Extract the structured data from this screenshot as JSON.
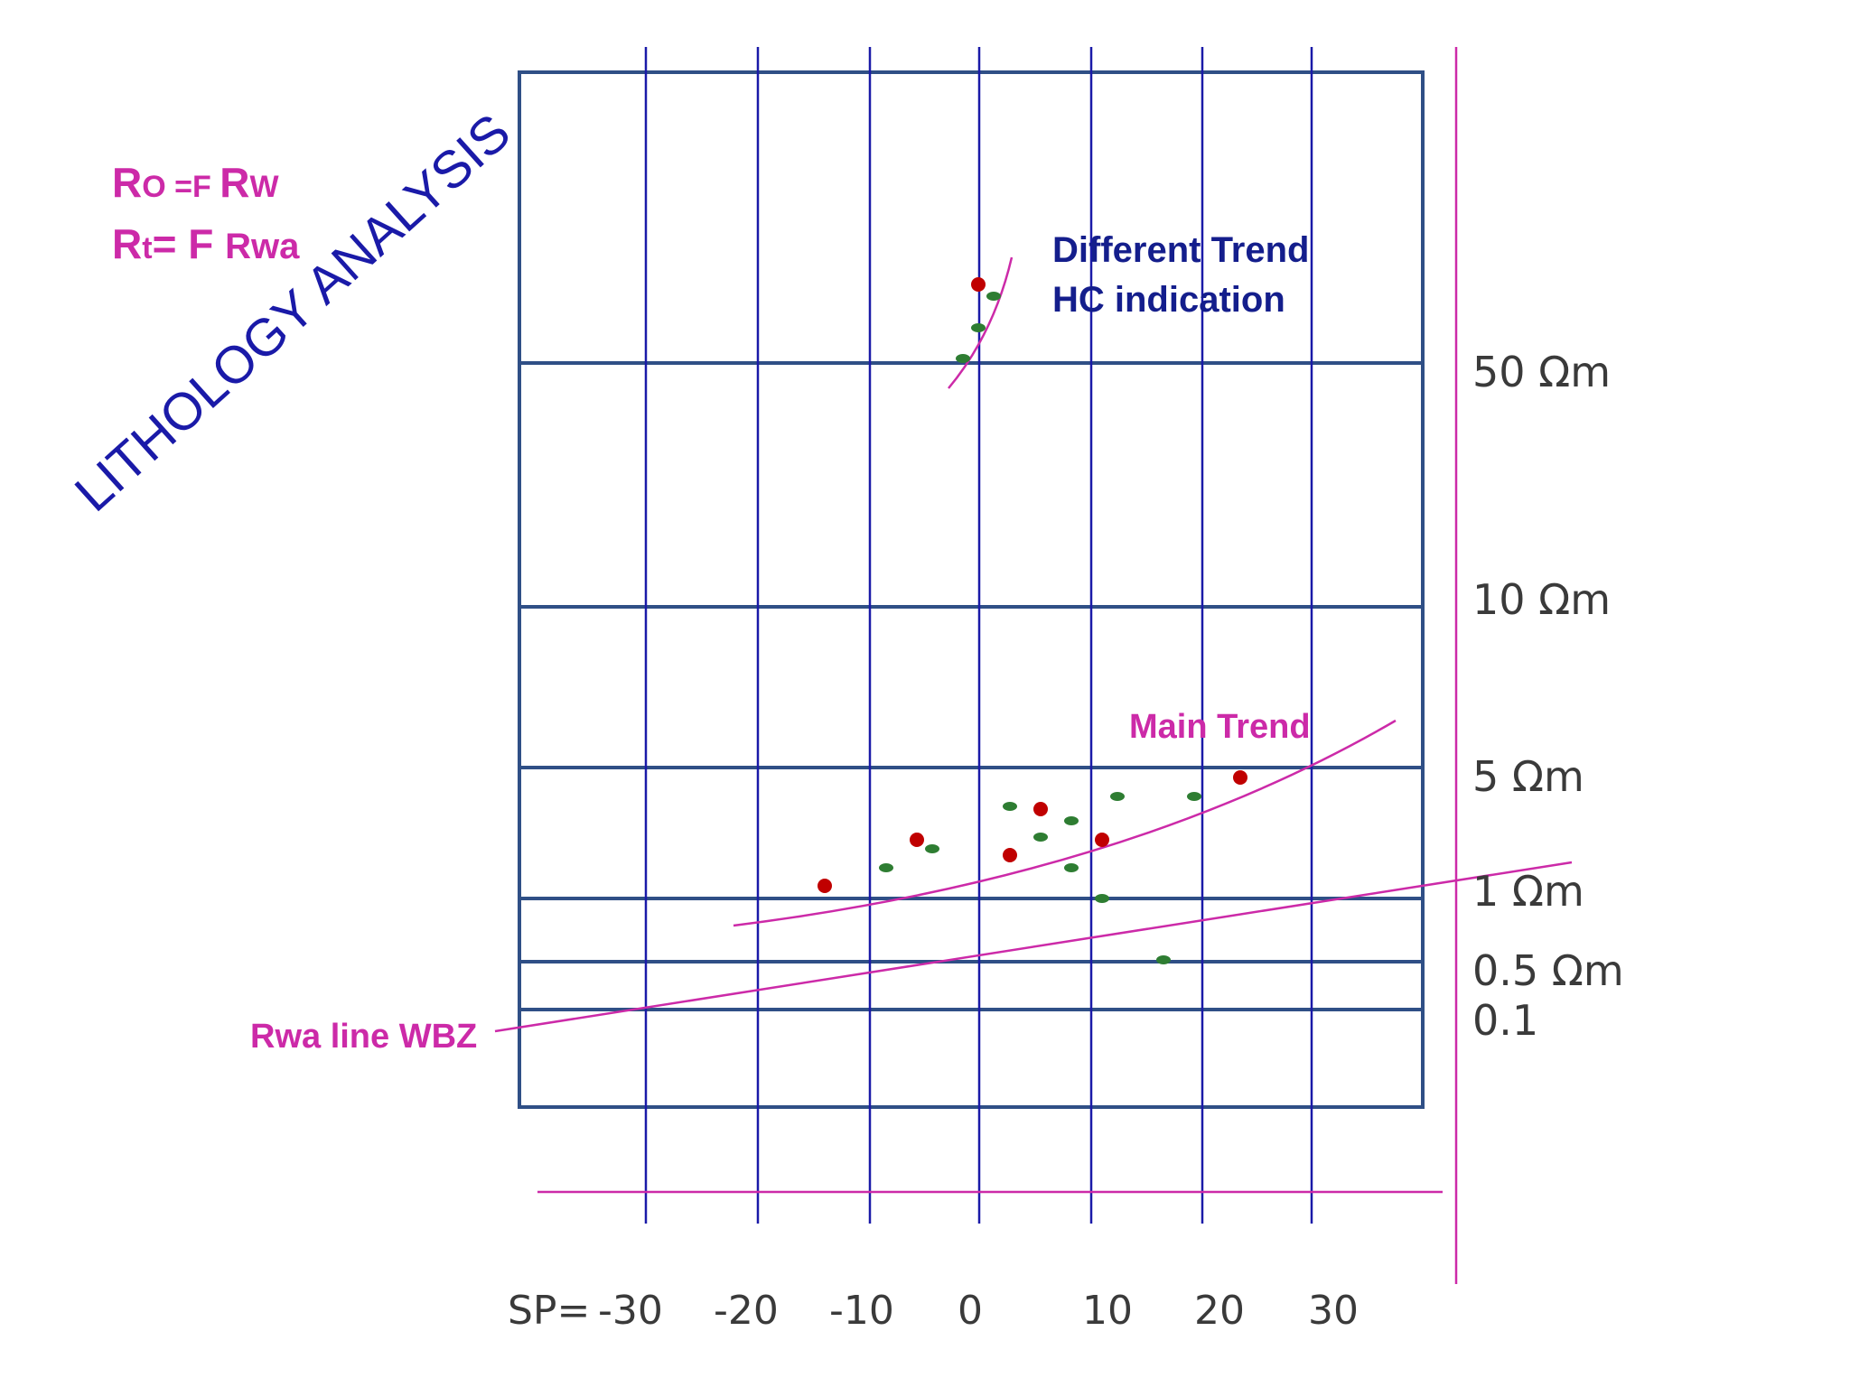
{
  "equations": {
    "ro_eq": {
      "lhs": "R",
      "lhs_sub": "O",
      "op": " =F ",
      "rhs": "R",
      "rhs_sub": "W"
    },
    "rt_eq": {
      "lhs": "R",
      "lhs_sub": "t",
      "op": "= F ",
      "rhs": "Rwa"
    }
  },
  "title": "LITHOLOGY ANALYSIS",
  "annotations": {
    "different_trend": "Different Trend",
    "hc_indication": "HC indication",
    "main_trend": "Main Trend",
    "rwa_line": "Rwa line WBZ"
  },
  "resistivity_labels": [
    "50 Ωm",
    "10 Ωm",
    "5 Ωm",
    "1 Ωm",
    "0.5 Ωm",
    "0.1"
  ],
  "sp_axis": {
    "prefix": "SP=",
    "ticks": [
      "-30",
      "-20",
      "-10",
      "0",
      "10",
      "20",
      "30"
    ]
  },
  "colors": {
    "grid_blue": "#1a1aa8",
    "frame": "#2f4f86",
    "magenta": "#cc2aa8",
    "red_point": "#c00000",
    "green_point": "#2e7d32"
  },
  "chart_data": {
    "type": "scatter",
    "x_label": "SP",
    "x_ticks": [
      -30,
      -20,
      -10,
      0,
      10,
      20,
      30
    ],
    "y_ticks": [
      "50 Ωm",
      "10 Ωm",
      "5 Ωm",
      "1 Ωm",
      "0.5 Ωm",
      "0.1"
    ],
    "series": [
      {
        "color": "red",
        "points": [
          [
            0,
            65
          ],
          [
            -5,
            3.1
          ],
          [
            5,
            4.2
          ],
          [
            3,
            2.6
          ],
          [
            11,
            3.1
          ],
          [
            23,
            5.3
          ],
          [
            -14,
            1.6
          ]
        ]
      },
      {
        "color": "green",
        "points": [
          [
            1.5,
            60
          ],
          [
            0,
            53
          ],
          [
            -1.5,
            47
          ],
          [
            2.5,
            4.3
          ],
          [
            8,
            4.0
          ],
          [
            5,
            3.3
          ],
          [
            12,
            4.6
          ],
          [
            19,
            4.6
          ],
          [
            -4,
            2.9
          ],
          [
            -8,
            2.4
          ],
          [
            8,
            2.4
          ],
          [
            10.5,
            1.6
          ],
          [
            16,
            0.95
          ]
        ]
      }
    ],
    "trend_lines": [
      {
        "label": "Main Trend",
        "color": "magenta"
      },
      {
        "label": "Different Trend",
        "color": "magenta"
      },
      {
        "label": "Rwa line WBZ",
        "color": "magenta"
      }
    ]
  }
}
